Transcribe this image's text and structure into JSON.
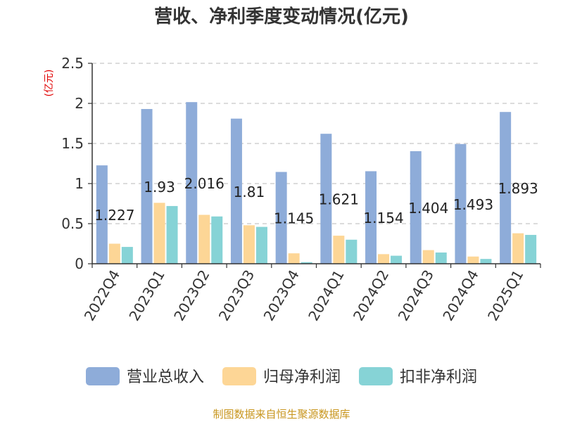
{
  "chart_data": {
    "type": "bar",
    "title": "营收、净利季度变动情况(亿元)",
    "ylabel": "(亿元)",
    "xlabel": "",
    "categories": [
      "2022Q4",
      "2023Q1",
      "2023Q2",
      "2023Q3",
      "2023Q4",
      "2024Q1",
      "2024Q2",
      "2024Q3",
      "2024Q4",
      "2025Q1"
    ],
    "ylim": [
      0,
      2.5
    ],
    "yticks": [
      "0",
      "0.5",
      "1",
      "1.5",
      "2",
      "2.5"
    ],
    "grid": true,
    "legend_position": "bottom",
    "series": [
      {
        "name": "营业总收入",
        "color": "#8eacd9",
        "values": [
          1.227,
          1.93,
          2.016,
          1.81,
          1.145,
          1.621,
          1.154,
          1.404,
          1.493,
          1.893
        ],
        "labels": [
          "1.227",
          "1.93",
          "2.016",
          "1.81",
          "1.145",
          "1.621",
          "1.154",
          "1.404",
          "1.493",
          "1.893"
        ]
      },
      {
        "name": "归母净利润",
        "color": "#fdd696",
        "values": [
          0.25,
          0.76,
          0.61,
          0.48,
          0.13,
          0.35,
          0.12,
          0.17,
          0.09,
          0.38
        ]
      },
      {
        "name": "扣非净利润",
        "color": "#86d3d6",
        "values": [
          0.21,
          0.72,
          0.59,
          0.46,
          0.02,
          0.3,
          0.1,
          0.14,
          0.06,
          0.36
        ]
      }
    ],
    "source": "制图数据来自恒生聚源数据库"
  }
}
